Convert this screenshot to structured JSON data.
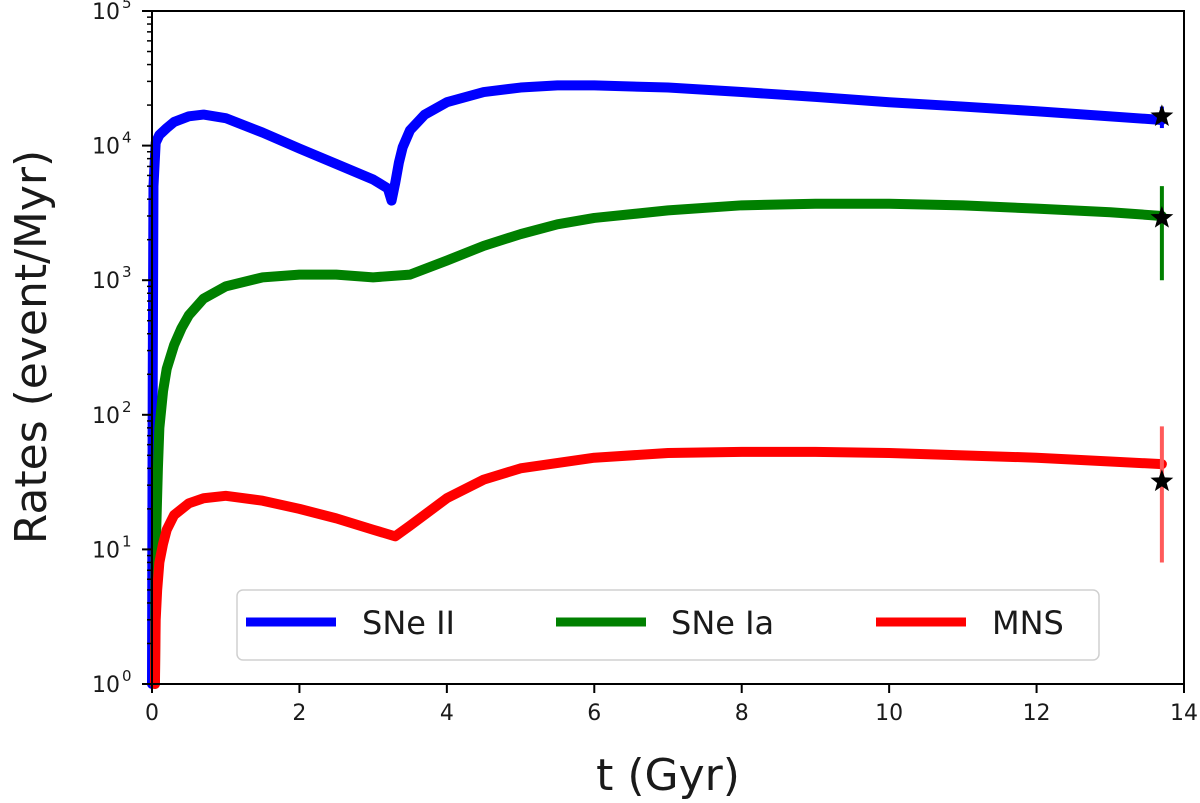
{
  "chart_data": {
    "type": "line",
    "title": "",
    "xlabel": "t (Gyr)",
    "ylabel": "Rates (event/Myr)",
    "xlim": [
      0,
      14
    ],
    "ylim": [
      1,
      100000
    ],
    "yscale": "log",
    "grid": false,
    "legend_position": "bottom-center",
    "x_ticks": [
      0,
      2,
      4,
      6,
      8,
      10,
      12,
      14
    ],
    "x_tick_labels": [
      "0",
      "2",
      "4",
      "6",
      "8",
      "10",
      "12",
      "14"
    ],
    "y_ticks": [
      {
        "value": 1,
        "base": "10",
        "exp": "0"
      },
      {
        "value": 10,
        "base": "10",
        "exp": "1"
      },
      {
        "value": 100,
        "base": "10",
        "exp": "2"
      },
      {
        "value": 1000,
        "base": "10",
        "exp": "3"
      },
      {
        "value": 10000,
        "base": "10",
        "exp": "4"
      },
      {
        "value": 100000,
        "base": "10",
        "exp": "5"
      }
    ],
    "series": [
      {
        "name": "SNe II",
        "color": "#0000ff",
        "x": [
          0.0,
          0.01,
          0.02,
          0.05,
          0.1,
          0.2,
          0.3,
          0.5,
          0.7,
          1.0,
          1.5,
          2.0,
          2.5,
          3.0,
          3.2,
          3.25,
          3.3,
          3.35,
          3.4,
          3.5,
          3.7,
          4.0,
          4.5,
          5.0,
          5.5,
          6.0,
          7.0,
          8.0,
          9.0,
          10.0,
          11.0,
          12.0,
          13.0,
          13.7
        ],
        "y": [
          1,
          200,
          5000,
          10500,
          12000,
          13500,
          15000,
          16500,
          17000,
          16000,
          12500,
          9500,
          7300,
          5600,
          4800,
          3900,
          5300,
          7500,
          9700,
          13000,
          17000,
          21000,
          25000,
          27000,
          28000,
          28000,
          27000,
          25000,
          23000,
          21000,
          19500,
          18000,
          16500,
          15500
        ]
      },
      {
        "name": "SNe Ia",
        "color": "#008000",
        "x": [
          0.04,
          0.05,
          0.08,
          0.1,
          0.15,
          0.2,
          0.3,
          0.4,
          0.5,
          0.7,
          1.0,
          1.5,
          2.0,
          2.5,
          3.0,
          3.5,
          4.0,
          4.5,
          5.0,
          5.5,
          6.0,
          7.0,
          8.0,
          9.0,
          10.0,
          11.0,
          12.0,
          13.0,
          13.7
        ],
        "y": [
          1,
          10,
          40,
          80,
          150,
          220,
          330,
          440,
          550,
          730,
          900,
          1050,
          1100,
          1100,
          1050,
          1100,
          1400,
          1800,
          2200,
          2600,
          2900,
          3300,
          3600,
          3700,
          3700,
          3600,
          3400,
          3200,
          3000
        ]
      },
      {
        "name": "MNS",
        "color": "#ff0000",
        "x": [
          0.04,
          0.05,
          0.07,
          0.1,
          0.15,
          0.2,
          0.3,
          0.5,
          0.7,
          1.0,
          1.5,
          2.0,
          2.5,
          3.0,
          3.3,
          3.5,
          4.0,
          4.5,
          5.0,
          6.0,
          7.0,
          8.0,
          9.0,
          10.0,
          11.0,
          12.0,
          13.0,
          13.7
        ],
        "y": [
          1,
          3,
          5,
          8,
          11,
          14,
          18,
          22,
          24,
          25,
          23,
          20,
          17,
          14,
          12.5,
          15,
          24,
          33,
          40,
          48,
          52,
          53,
          53,
          52,
          50,
          48,
          45,
          43
        ]
      }
    ],
    "observations": [
      {
        "name": "SNe II observed",
        "x": 13.7,
        "y": 16500,
        "err_low": 13500,
        "err_high": 19500,
        "color": "#0000ff",
        "marker": "star"
      },
      {
        "name": "SNe Ia observed",
        "x": 13.7,
        "y": 2900,
        "err_low": 1000,
        "err_high": 5000,
        "color": "#008000",
        "marker": "star"
      },
      {
        "name": "MNS observed",
        "x": 13.7,
        "y": 32,
        "err_low": 8,
        "err_high": 82,
        "color": "#ff5a5a",
        "marker": "star"
      }
    ]
  }
}
